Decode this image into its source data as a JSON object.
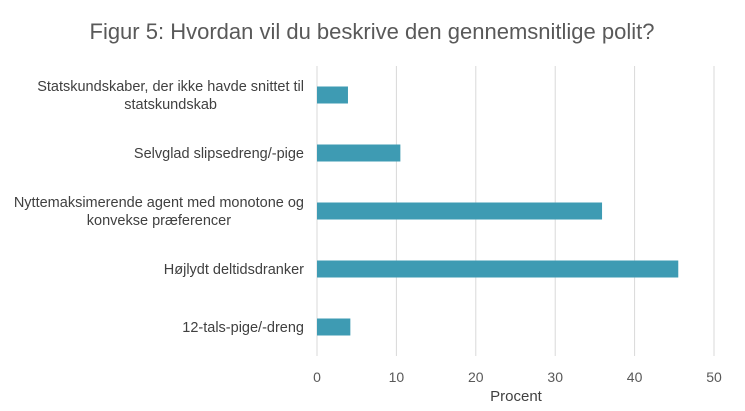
{
  "chart_data": {
    "type": "bar",
    "orientation": "horizontal",
    "title": "Figur 5: Hvordan vil du beskrive den gennemsnitlige polit?",
    "categories": [
      [
        "Statskundskaber, der ikke havde snittet til",
        "statskundskab"
      ],
      [
        "Selvglad slipsedreng/-pige"
      ],
      [
        "Nyttemaksimerende agent med monotone og",
        "konvekse præferencer"
      ],
      [
        "Højlydt deltidsdranker"
      ],
      [
        "12-tals-pige/-dreng"
      ]
    ],
    "values": [
      3.9,
      10.5,
      35.9,
      45.5,
      4.2
    ],
    "xlabel": "Procent",
    "ylabel": "",
    "xlim": [
      0,
      50
    ],
    "xticks": [
      0,
      10,
      20,
      30,
      40,
      50
    ],
    "grid": "vertical",
    "bar_color": "#3e9bb3"
  }
}
